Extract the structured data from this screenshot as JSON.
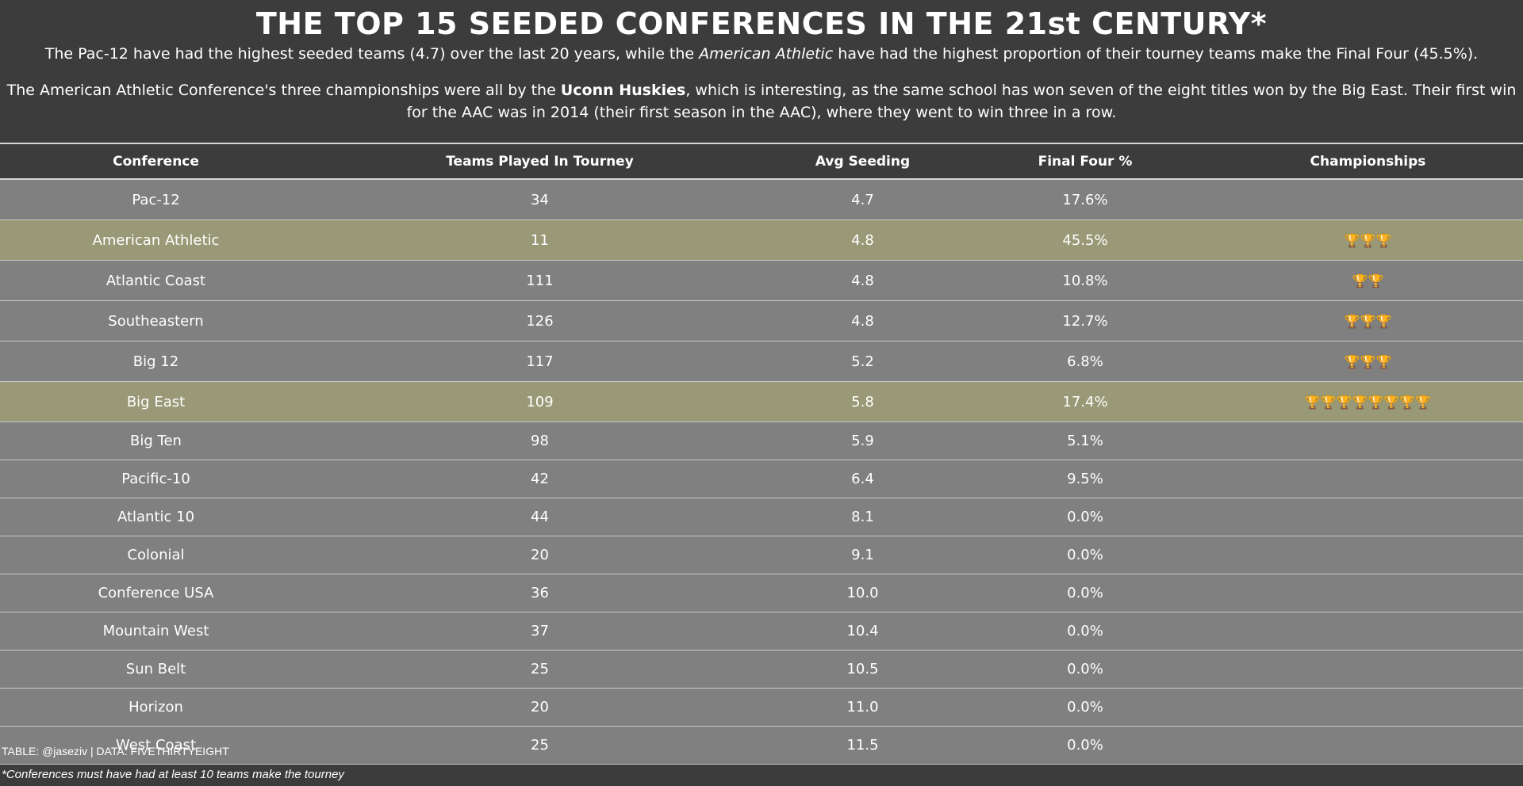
{
  "title": "THE TOP 15 SEEDED CONFERENCES IN THE 21st CENTURY*",
  "subtitle1": {
    "part1": "The Pac-12 have had the highest seeded teams (4.7) over the last 20 years, while the ",
    "emph": "American Athletic",
    "part2": " have had the highest proportion of their tourney teams make the Final Four (45.5%)."
  },
  "subtitle2": {
    "part1": "The American Athletic Conference's three championships were all by the ",
    "bold": "Uconn Huskies",
    "part2": ", which is interesting, as the same school has won seven of the eight titles won by the Big East. Their first win for the AAC was in 2014 (their first season in the AAC), where they went to win three in a row."
  },
  "colors": {
    "background": "#3c3c3c",
    "row": "#808080",
    "highlight_row": "#999977",
    "trophy": "#d9a21b"
  },
  "icons": {
    "championship": "trophy-icon"
  },
  "chart_data": {
    "type": "table",
    "columns": [
      "Conference",
      "Teams Played In Tourney",
      "Avg Seeding",
      "Final Four %",
      "Championships"
    ],
    "rows": [
      {
        "conference": "Pac-12",
        "teams": "34",
        "seed": "4.7",
        "ff": "17.6%",
        "champs": 0,
        "highlight": false
      },
      {
        "conference": "American Athletic",
        "teams": "11",
        "seed": "4.8",
        "ff": "45.5%",
        "champs": 3,
        "highlight": true
      },
      {
        "conference": "Atlantic Coast",
        "teams": "111",
        "seed": "4.8",
        "ff": "10.8%",
        "champs": 2,
        "highlight": false
      },
      {
        "conference": "Southeastern",
        "teams": "126",
        "seed": "4.8",
        "ff": "12.7%",
        "champs": 3,
        "highlight": false
      },
      {
        "conference": "Big 12",
        "teams": "117",
        "seed": "5.2",
        "ff": "6.8%",
        "champs": 3,
        "highlight": false
      },
      {
        "conference": "Big East",
        "teams": "109",
        "seed": "5.8",
        "ff": "17.4%",
        "champs": 8,
        "highlight": true
      },
      {
        "conference": "Big Ten",
        "teams": "98",
        "seed": "5.9",
        "ff": "5.1%",
        "champs": 0,
        "highlight": false
      },
      {
        "conference": "Pacific-10",
        "teams": "42",
        "seed": "6.4",
        "ff": "9.5%",
        "champs": 0,
        "highlight": false
      },
      {
        "conference": "Atlantic 10",
        "teams": "44",
        "seed": "8.1",
        "ff": "0.0%",
        "champs": 0,
        "highlight": false
      },
      {
        "conference": "Colonial",
        "teams": "20",
        "seed": "9.1",
        "ff": "0.0%",
        "champs": 0,
        "highlight": false
      },
      {
        "conference": "Conference USA",
        "teams": "36",
        "seed": "10.0",
        "ff": "0.0%",
        "champs": 0,
        "highlight": false
      },
      {
        "conference": "Mountain West",
        "teams": "37",
        "seed": "10.4",
        "ff": "0.0%",
        "champs": 0,
        "highlight": false
      },
      {
        "conference": "Sun Belt",
        "teams": "25",
        "seed": "10.5",
        "ff": "0.0%",
        "champs": 0,
        "highlight": false
      },
      {
        "conference": "Horizon",
        "teams": "20",
        "seed": "11.0",
        "ff": "0.0%",
        "champs": 0,
        "highlight": false
      },
      {
        "conference": "West Coast",
        "teams": "25",
        "seed": "11.5",
        "ff": "0.0%",
        "champs": 0,
        "highlight": false
      }
    ]
  },
  "footer": {
    "source": "TABLE: @jaseziv | DATA: FIVETHIRTYEIGHT",
    "note": "*Conferences must have had at least 10 teams make the tourney"
  }
}
